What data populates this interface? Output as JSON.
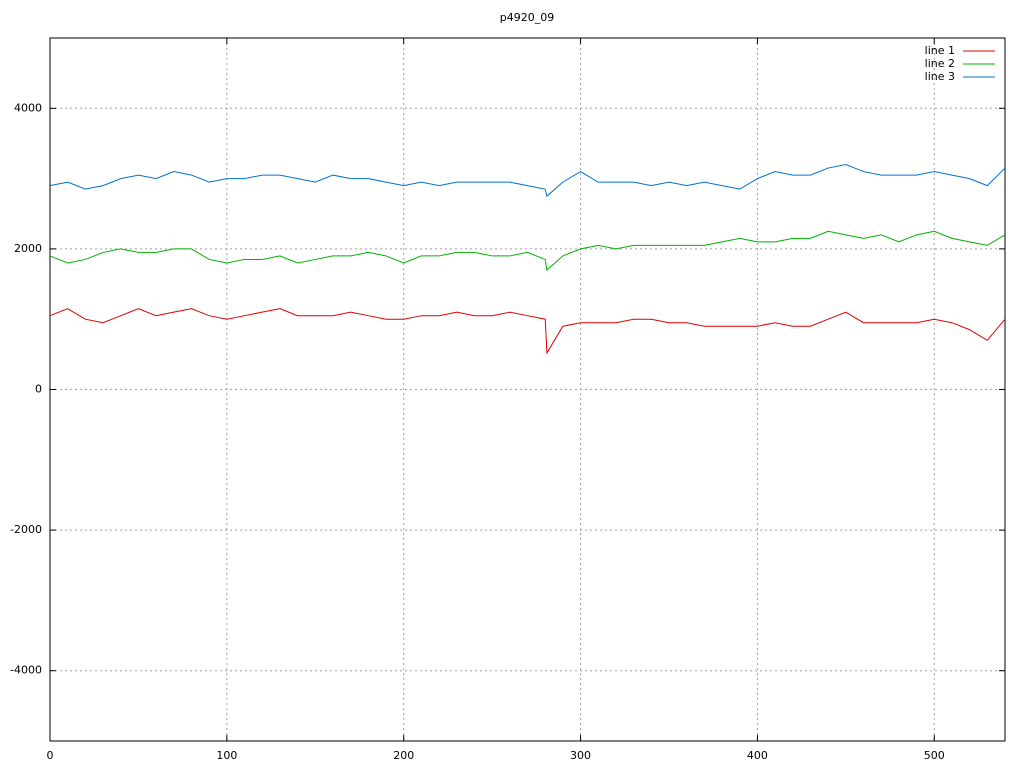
{
  "chart_data": {
    "type": "line",
    "title": "p4920_09",
    "x": [
      0,
      10,
      20,
      30,
      40,
      50,
      60,
      70,
      80,
      90,
      100,
      110,
      120,
      130,
      140,
      150,
      160,
      170,
      180,
      190,
      200,
      210,
      220,
      230,
      240,
      250,
      260,
      270,
      280,
      281,
      290,
      300,
      310,
      320,
      330,
      340,
      350,
      360,
      370,
      380,
      390,
      400,
      410,
      420,
      430,
      440,
      450,
      460,
      470,
      480,
      490,
      500,
      510,
      520,
      530,
      540
    ],
    "series": [
      {
        "name": "line 1",
        "color": "#e00000",
        "values": [
          1050,
          1150,
          1000,
          950,
          1050,
          1150,
          1050,
          1100,
          1150,
          1050,
          1000,
          1050,
          1100,
          1150,
          1050,
          1050,
          1050,
          1100,
          1050,
          1000,
          1000,
          1050,
          1050,
          1100,
          1050,
          1050,
          1100,
          1050,
          1000,
          520,
          900,
          950,
          950,
          950,
          1000,
          1000,
          950,
          950,
          900,
          900,
          900,
          900,
          950,
          900,
          900,
          1000,
          1100,
          950,
          950,
          950,
          950,
          1000,
          950,
          850,
          700,
          1000
        ]
      },
      {
        "name": "line 2",
        "color": "#00b000",
        "values": [
          1900,
          1800,
          1850,
          1950,
          2000,
          1950,
          1950,
          2000,
          2000,
          1850,
          1800,
          1850,
          1850,
          1900,
          1800,
          1850,
          1900,
          1900,
          1950,
          1900,
          1800,
          1900,
          1900,
          1950,
          1950,
          1900,
          1900,
          1950,
          1850,
          1700,
          1900,
          2000,
          2050,
          2000,
          2050,
          2050,
          2050,
          2050,
          2050,
          2100,
          2150,
          2100,
          2100,
          2150,
          2150,
          2250,
          2200,
          2150,
          2200,
          2100,
          2200,
          2250,
          2150,
          2100,
          2050,
          2200
        ]
      },
      {
        "name": "line 3",
        "color": "#0070d0",
        "values": [
          2900,
          2950,
          2850,
          2900,
          3000,
          3050,
          3000,
          3100,
          3050,
          2950,
          3000,
          3000,
          3050,
          3050,
          3000,
          2950,
          3050,
          3000,
          3000,
          2950,
          2900,
          2950,
          2900,
          2950,
          2950,
          2950,
          2950,
          2900,
          2850,
          2750,
          2950,
          3100,
          2950,
          2950,
          2950,
          2900,
          2950,
          2900,
          2950,
          2900,
          2850,
          3000,
          3100,
          3050,
          3050,
          3150,
          3200,
          3100,
          3050,
          3050,
          3050,
          3100,
          3050,
          3000,
          2900,
          3150
        ]
      }
    ],
    "xlim": [
      0,
      540
    ],
    "xticks": [
      0,
      100,
      200,
      300,
      400,
      500
    ],
    "ylim": [
      -5000,
      5000
    ],
    "yticks": [
      -4000,
      -2000,
      0,
      2000,
      4000
    ],
    "grid": true,
    "legend": "top-right"
  }
}
